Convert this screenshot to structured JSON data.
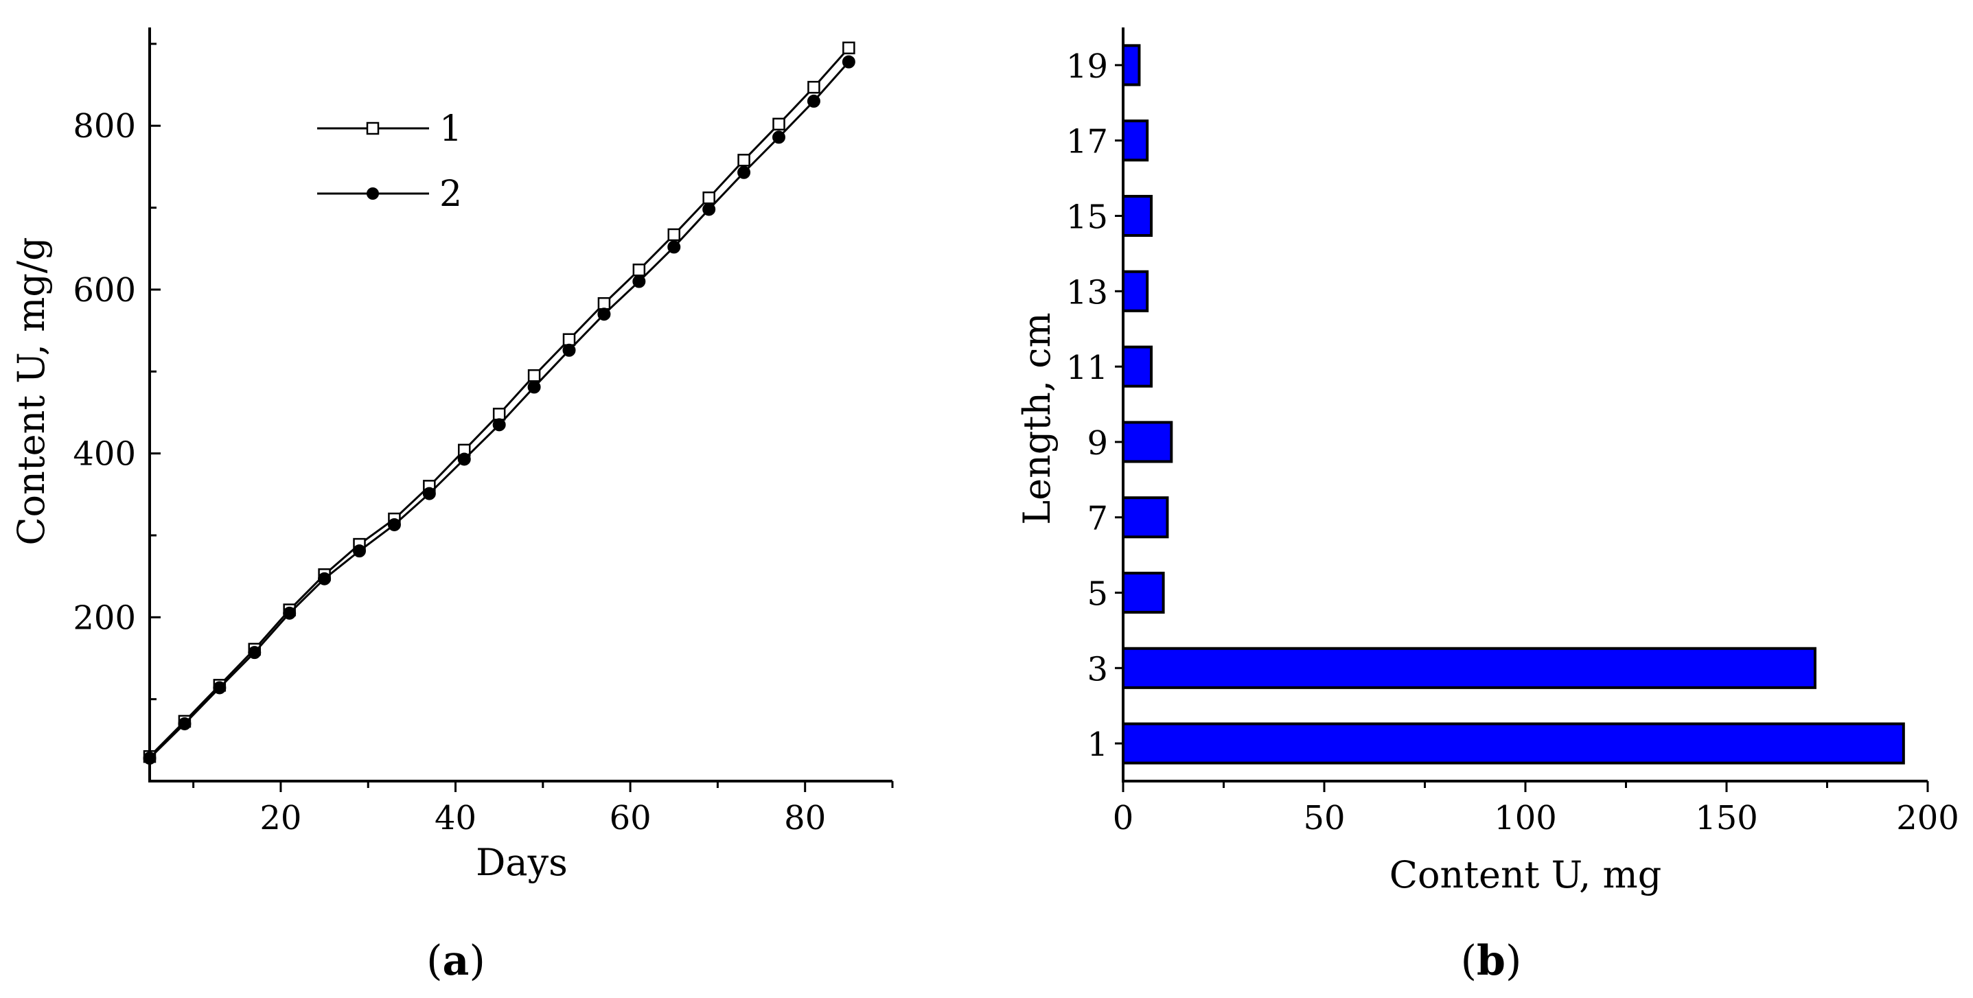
{
  "colors": {
    "bar_fill": "#0000ff",
    "bar_stroke": "#000000",
    "line": "#000000",
    "marker_open_fill": "#ffffff",
    "marker_filled_fill": "#000000",
    "background": "#ffffff"
  },
  "panels": {
    "a": {
      "open": "(",
      "letter": "a",
      "close": ")"
    },
    "b": {
      "open": "(",
      "letter": "b",
      "close": ")"
    }
  },
  "chart_data": [
    {
      "type": "line",
      "xlabel": "Days",
      "ylabel": "Content U, mg/g",
      "xlim": [
        5,
        90
      ],
      "ylim": [
        0,
        920
      ],
      "xticks": [
        20,
        40,
        60,
        80
      ],
      "yticks": [
        200,
        400,
        600,
        800
      ],
      "grid": false,
      "legend_position": "top-left",
      "x": [
        5,
        9,
        13,
        17,
        21,
        25,
        29,
        33,
        37,
        41,
        45,
        49,
        53,
        57,
        61,
        65,
        69,
        73,
        77,
        81,
        85
      ],
      "series": [
        {
          "name": "1",
          "marker": "open-square",
          "values": [
            30,
            73,
            117,
            161,
            209,
            252,
            289,
            320,
            360,
            404,
            448,
            495,
            539,
            583,
            624,
            667,
            712,
            758,
            802,
            847,
            895
          ]
        },
        {
          "name": "2",
          "marker": "filled-circle",
          "values": [
            28,
            70,
            114,
            157,
            205,
            247,
            281,
            313,
            351,
            393,
            435,
            481,
            526,
            570,
            610,
            652,
            698,
            743,
            786,
            830,
            878
          ]
        }
      ]
    },
    {
      "type": "bar",
      "orientation": "horizontal",
      "xlabel": "Content U, mg",
      "ylabel": "Length, cm",
      "xlim": [
        0,
        200
      ],
      "xticks": [
        0,
        50,
        100,
        150,
        200
      ],
      "grid": false,
      "categories": [
        "1",
        "3",
        "5",
        "7",
        "9",
        "11",
        "13",
        "15",
        "17",
        "19"
      ],
      "values": [
        194,
        172,
        10,
        11,
        12,
        7,
        6,
        7,
        6,
        4
      ]
    }
  ]
}
